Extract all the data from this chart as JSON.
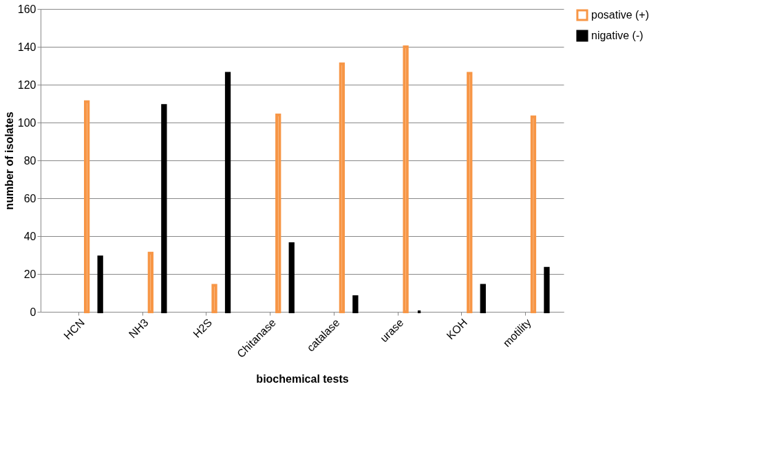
{
  "chart_data": {
    "type": "bar",
    "xlabel": "biochemical tests",
    "ylabel": "number of isolates",
    "categories": [
      "HCN",
      "NH3",
      "H2S",
      "Chitanase",
      "catalase",
      "urase",
      "KOH",
      "motility"
    ],
    "series": [
      {
        "name": "posative (+)",
        "color": "#f79646",
        "values": [
          111,
          31,
          14,
          104,
          131,
          140,
          126,
          103
        ]
      },
      {
        "name": "nigative (-)",
        "color": "#000000",
        "values": [
          29,
          109,
          126,
          36,
          8,
          0,
          14,
          23
        ]
      }
    ],
    "ylim": [
      0,
      160
    ],
    "yticks": [
      0,
      20,
      40,
      60,
      80,
      100,
      120,
      140,
      160
    ],
    "grid": "y",
    "legend": "right"
  }
}
